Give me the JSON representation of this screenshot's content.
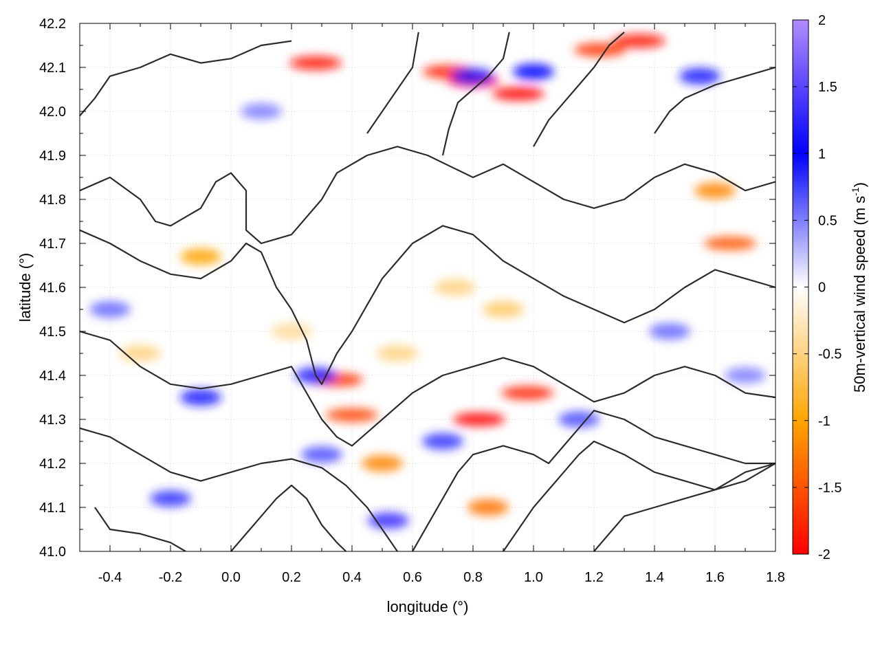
{
  "chart_data": {
    "type": "heatmap",
    "title": "",
    "xlabel": "longitude (°)",
    "ylabel": "latitude (°)",
    "xlim": [
      -0.5,
      1.8
    ],
    "ylim": [
      41.0,
      42.2
    ],
    "x_ticks": [
      "-0.4",
      "-0.2",
      "0.0",
      "0.2",
      "0.4",
      "0.6",
      "0.8",
      "1.0",
      "1.2",
      "1.4",
      "1.6",
      "1.8"
    ],
    "y_ticks": [
      "41.0",
      "41.1",
      "41.2",
      "41.3",
      "41.4",
      "41.5",
      "41.6",
      "41.7",
      "41.8",
      "41.9",
      "42.0",
      "42.1",
      "42.2"
    ],
    "grid": true,
    "colorbar": {
      "label_main": "50m-vertical wind speed (m s",
      "label_sup": "-1",
      "label_close": ")",
      "range": [
        -2,
        2
      ],
      "ticks": [
        "2",
        "1.5",
        "1",
        "0.5",
        "0",
        "-0.5",
        "-1",
        "-1.5",
        "-2"
      ],
      "colors": {
        "-2": "#ff0000",
        "-1": "#ffa500",
        "0": "#ffffff",
        "1": "#0000ff",
        "2": "#b28cff"
      },
      "legend_position": "right"
    },
    "hotspots": [
      {
        "lon": 0.8,
        "lat": 42.07,
        "value": -2.0
      },
      {
        "lon": 0.95,
        "lat": 42.04,
        "value": -2.0
      },
      {
        "lon": 0.72,
        "lat": 42.09,
        "value": -1.8
      },
      {
        "lon": 0.28,
        "lat": 42.11,
        "value": -1.9
      },
      {
        "lon": 1.35,
        "lat": 42.16,
        "value": -1.9
      },
      {
        "lon": 1.22,
        "lat": 42.14,
        "value": -1.7
      },
      {
        "lon": 0.82,
        "lat": 41.3,
        "value": -2.0
      },
      {
        "lon": 0.98,
        "lat": 41.36,
        "value": -1.8
      },
      {
        "lon": 0.35,
        "lat": 41.39,
        "value": -1.7
      },
      {
        "lon": 0.4,
        "lat": 41.31,
        "value": -1.6
      },
      {
        "lon": 1.65,
        "lat": 41.7,
        "value": -1.5
      },
      {
        "lon": 1.6,
        "lat": 41.82,
        "value": -1.2
      },
      {
        "lon": -0.1,
        "lat": 41.67,
        "value": -1.0
      },
      {
        "lon": 0.85,
        "lat": 41.1,
        "value": -1.3
      },
      {
        "lon": 0.5,
        "lat": 41.2,
        "value": -1.2
      },
      {
        "lon": 0.74,
        "lat": 41.6,
        "value": -0.5
      },
      {
        "lon": 0.9,
        "lat": 41.55,
        "value": -0.6
      },
      {
        "lon": 0.2,
        "lat": 41.5,
        "value": -0.4
      },
      {
        "lon": -0.3,
        "lat": 41.45,
        "value": -0.5
      },
      {
        "lon": 0.55,
        "lat": 41.45,
        "value": -0.5
      },
      {
        "lon": 0.28,
        "lat": 41.4,
        "value": 1.2
      },
      {
        "lon": 0.52,
        "lat": 41.07,
        "value": 1.3
      },
      {
        "lon": 0.8,
        "lat": 42.08,
        "value": 1.2
      },
      {
        "lon": 1.0,
        "lat": 42.09,
        "value": 1.0
      },
      {
        "lon": 1.55,
        "lat": 42.08,
        "value": 0.9
      },
      {
        "lon": -0.1,
        "lat": 41.35,
        "value": 0.9
      },
      {
        "lon": -0.4,
        "lat": 41.55,
        "value": 0.6
      },
      {
        "lon": 0.7,
        "lat": 41.25,
        "value": 0.8
      },
      {
        "lon": 1.15,
        "lat": 41.3,
        "value": 0.7
      },
      {
        "lon": 0.3,
        "lat": 41.22,
        "value": 0.7
      },
      {
        "lon": -0.2,
        "lat": 41.12,
        "value": 0.8
      },
      {
        "lon": 0.1,
        "lat": 42.0,
        "value": 0.5
      },
      {
        "lon": 1.45,
        "lat": 41.5,
        "value": 0.6
      },
      {
        "lon": 1.7,
        "lat": 41.4,
        "value": 0.5
      }
    ],
    "contours": [
      [
        [
          -0.5,
          41.99
        ],
        [
          -0.45,
          42.03
        ],
        [
          -0.4,
          42.08
        ],
        [
          -0.3,
          42.1
        ],
        [
          -0.2,
          42.13
        ],
        [
          -0.1,
          42.11
        ],
        [
          0.0,
          42.12
        ],
        [
          0.1,
          42.15
        ],
        [
          0.2,
          42.16
        ]
      ],
      [
        [
          -0.5,
          41.82
        ],
        [
          -0.4,
          41.85
        ],
        [
          -0.3,
          41.8
        ],
        [
          -0.25,
          41.75
        ],
        [
          -0.2,
          41.74
        ],
        [
          -0.1,
          41.78
        ],
        [
          -0.05,
          41.84
        ],
        [
          0.0,
          41.86
        ],
        [
          0.05,
          41.82
        ],
        [
          0.05,
          41.73
        ],
        [
          0.1,
          41.7
        ],
        [
          0.2,
          41.72
        ],
        [
          0.3,
          41.8
        ],
        [
          0.35,
          41.86
        ],
        [
          0.45,
          41.9
        ],
        [
          0.55,
          41.92
        ],
        [
          0.65,
          41.9
        ],
        [
          0.8,
          41.85
        ],
        [
          0.9,
          41.88
        ],
        [
          1.0,
          41.84
        ],
        [
          1.1,
          41.8
        ],
        [
          1.2,
          41.78
        ],
        [
          1.3,
          41.8
        ],
        [
          1.4,
          41.85
        ],
        [
          1.5,
          41.88
        ],
        [
          1.6,
          41.86
        ],
        [
          1.7,
          41.82
        ],
        [
          1.8,
          41.84
        ]
      ],
      [
        [
          -0.5,
          41.73
        ],
        [
          -0.4,
          41.7
        ],
        [
          -0.3,
          41.66
        ],
        [
          -0.2,
          41.63
        ],
        [
          -0.1,
          41.62
        ],
        [
          0.0,
          41.66
        ],
        [
          0.05,
          41.7
        ],
        [
          0.1,
          41.68
        ],
        [
          0.15,
          41.6
        ],
        [
          0.2,
          41.55
        ],
        [
          0.25,
          41.48
        ],
        [
          0.28,
          41.4
        ],
        [
          0.3,
          41.38
        ],
        [
          0.35,
          41.45
        ],
        [
          0.4,
          41.5
        ],
        [
          0.45,
          41.56
        ],
        [
          0.5,
          41.62
        ],
        [
          0.55,
          41.66
        ],
        [
          0.6,
          41.7
        ],
        [
          0.7,
          41.74
        ],
        [
          0.8,
          41.72
        ],
        [
          0.9,
          41.66
        ],
        [
          1.0,
          41.62
        ],
        [
          1.1,
          41.58
        ],
        [
          1.2,
          41.55
        ],
        [
          1.3,
          41.52
        ],
        [
          1.4,
          41.55
        ],
        [
          1.5,
          41.6
        ],
        [
          1.6,
          41.64
        ],
        [
          1.7,
          41.62
        ],
        [
          1.8,
          41.6
        ]
      ],
      [
        [
          -0.5,
          41.5
        ],
        [
          -0.4,
          41.48
        ],
        [
          -0.3,
          41.42
        ],
        [
          -0.2,
          41.38
        ],
        [
          -0.1,
          41.37
        ],
        [
          0.0,
          41.38
        ],
        [
          0.1,
          41.4
        ],
        [
          0.2,
          41.42
        ],
        [
          0.25,
          41.36
        ],
        [
          0.3,
          41.3
        ],
        [
          0.35,
          41.26
        ],
        [
          0.4,
          41.24
        ],
        [
          0.5,
          41.3
        ],
        [
          0.6,
          41.36
        ],
        [
          0.7,
          41.4
        ],
        [
          0.8,
          41.42
        ],
        [
          0.9,
          41.44
        ],
        [
          1.0,
          41.42
        ],
        [
          1.1,
          41.38
        ],
        [
          1.2,
          41.34
        ],
        [
          1.3,
          41.36
        ],
        [
          1.4,
          41.4
        ],
        [
          1.5,
          41.42
        ],
        [
          1.6,
          41.4
        ],
        [
          1.7,
          41.36
        ],
        [
          1.8,
          41.35
        ]
      ],
      [
        [
          -0.5,
          41.28
        ],
        [
          -0.4,
          41.26
        ],
        [
          -0.3,
          41.22
        ],
        [
          -0.2,
          41.18
        ],
        [
          -0.1,
          41.16
        ],
        [
          0.0,
          41.18
        ],
        [
          0.1,
          41.2
        ],
        [
          0.2,
          41.21
        ],
        [
          0.3,
          41.19
        ],
        [
          0.38,
          41.15
        ],
        [
          0.45,
          41.1
        ],
        [
          0.5,
          41.05
        ],
        [
          0.55,
          41.0
        ]
      ],
      [
        [
          0.6,
          41.0
        ],
        [
          0.65,
          41.06
        ],
        [
          0.7,
          41.12
        ],
        [
          0.75,
          41.18
        ],
        [
          0.8,
          41.22
        ],
        [
          0.9,
          41.24
        ],
        [
          1.0,
          41.22
        ],
        [
          1.05,
          41.2
        ],
        [
          1.1,
          41.24
        ],
        [
          1.15,
          41.28
        ],
        [
          1.2,
          41.32
        ],
        [
          1.3,
          41.3
        ],
        [
          1.4,
          41.26
        ],
        [
          1.5,
          41.24
        ],
        [
          1.6,
          41.22
        ],
        [
          1.7,
          41.2
        ],
        [
          1.8,
          41.2
        ]
      ],
      [
        [
          0.9,
          41.0
        ],
        [
          0.95,
          41.05
        ],
        [
          1.0,
          41.1
        ],
        [
          1.05,
          41.14
        ],
        [
          1.1,
          41.18
        ],
        [
          1.15,
          41.22
        ],
        [
          1.2,
          41.25
        ],
        [
          1.3,
          41.22
        ],
        [
          1.4,
          41.18
        ],
        [
          1.5,
          41.16
        ],
        [
          1.6,
          41.14
        ],
        [
          1.7,
          41.16
        ],
        [
          1.8,
          41.2
        ]
      ],
      [
        [
          1.2,
          41.0
        ],
        [
          1.25,
          41.04
        ],
        [
          1.3,
          41.08
        ],
        [
          1.4,
          41.1
        ],
        [
          1.5,
          41.12
        ],
        [
          1.6,
          41.14
        ],
        [
          1.7,
          41.18
        ],
        [
          1.8,
          41.2
        ]
      ],
      [
        [
          0.45,
          41.95
        ],
        [
          0.5,
          42.0
        ],
        [
          0.55,
          42.05
        ],
        [
          0.6,
          42.1
        ],
        [
          0.62,
          42.18
        ]
      ],
      [
        [
          0.7,
          41.9
        ],
        [
          0.72,
          41.96
        ],
        [
          0.75,
          42.02
        ],
        [
          0.8,
          42.05
        ],
        [
          0.85,
          42.08
        ],
        [
          0.9,
          42.12
        ],
        [
          0.92,
          42.18
        ]
      ],
      [
        [
          1.0,
          41.92
        ],
        [
          1.05,
          41.98
        ],
        [
          1.1,
          42.02
        ],
        [
          1.15,
          42.06
        ],
        [
          1.2,
          42.1
        ],
        [
          1.25,
          42.15
        ],
        [
          1.3,
          42.18
        ]
      ],
      [
        [
          1.4,
          41.95
        ],
        [
          1.45,
          42.0
        ],
        [
          1.5,
          42.03
        ],
        [
          1.6,
          42.06
        ],
        [
          1.7,
          42.08
        ],
        [
          1.8,
          42.1
        ]
      ],
      [
        [
          -0.45,
          41.1
        ],
        [
          -0.4,
          41.05
        ],
        [
          -0.3,
          41.04
        ],
        [
          -0.2,
          41.02
        ],
        [
          -0.15,
          41.0
        ]
      ],
      [
        [
          0.0,
          41.0
        ],
        [
          0.05,
          41.04
        ],
        [
          0.1,
          41.08
        ],
        [
          0.15,
          41.12
        ],
        [
          0.2,
          41.15
        ],
        [
          0.25,
          41.12
        ],
        [
          0.3,
          41.06
        ],
        [
          0.35,
          41.02
        ],
        [
          0.38,
          41.0
        ]
      ]
    ]
  }
}
